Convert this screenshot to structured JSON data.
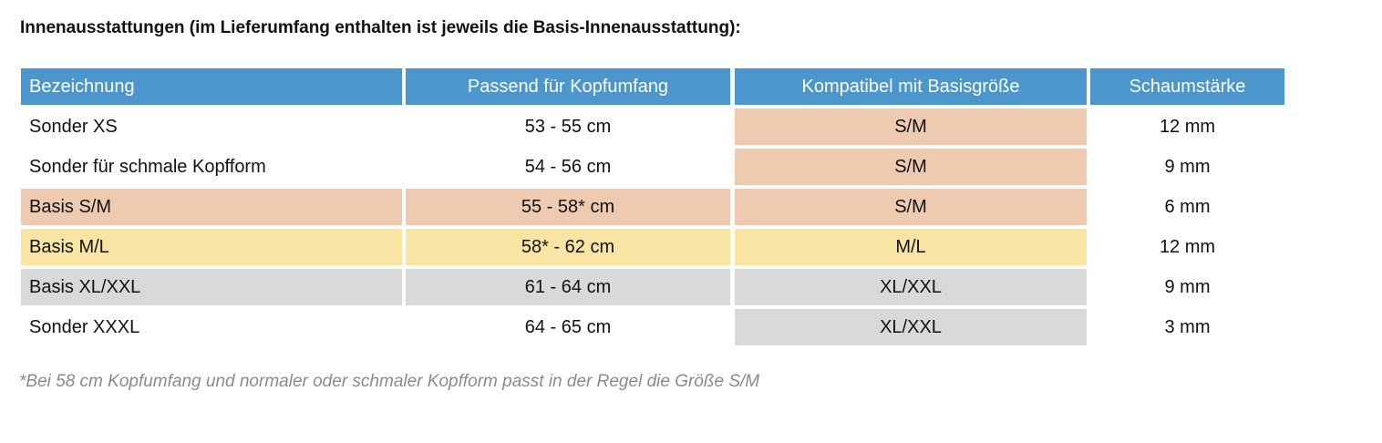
{
  "title": "Innenausstattungen (im Lieferumfang enthalten ist jeweils die Basis-Innenausstattung):",
  "colors": {
    "header": "#4a96cd",
    "sm": "#eecbb0",
    "ml": "#f9e4a4",
    "xl": "#d9d9d9"
  },
  "table": {
    "headers": [
      "Bezeichnung",
      "Passend für Kopfumfang",
      "Kompatibel mit Basisgröße",
      "Schaumstärke"
    ],
    "rows": [
      {
        "name": "Sonder XS",
        "range": "53 - 55 cm",
        "base": "S/M",
        "foam": "12 mm"
      },
      {
        "name": "Sonder für schmale Kopfform",
        "range": "54 - 56 cm",
        "base": "S/M",
        "foam": "9 mm"
      },
      {
        "name": "Basis S/M",
        "range": "55 - 58* cm",
        "base": "S/M",
        "foam": "6 mm"
      },
      {
        "name": "Basis M/L",
        "range": "58* - 62 cm",
        "base": "M/L",
        "foam": "12 mm"
      },
      {
        "name": "Basis XL/XXL",
        "range": "61 - 64 cm",
        "base": "XL/XXL",
        "foam": "9 mm"
      },
      {
        "name": "Sonder XXXL",
        "range": "64 - 65 cm",
        "base": "XL/XXL",
        "foam": "3 mm"
      }
    ]
  },
  "footnote": "*Bei 58 cm Kopfumfang und normaler oder schmaler Kopfform passt in der Regel die Größe S/M"
}
